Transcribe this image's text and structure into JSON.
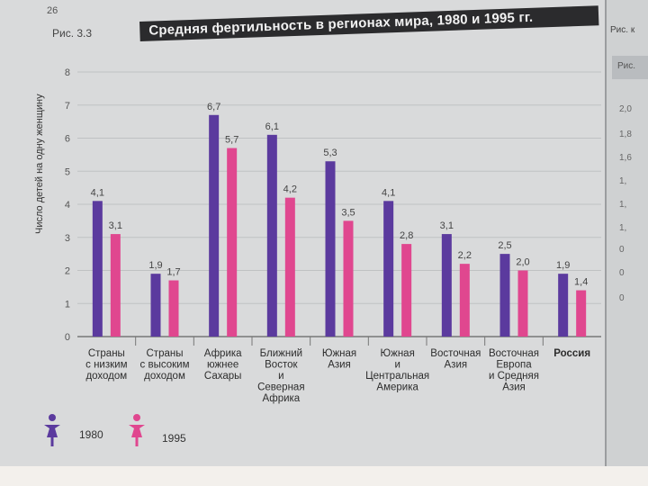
{
  "page": {
    "number": "26"
  },
  "figure": {
    "label": "Рис. 3.3",
    "title": "Средняя фертильность в регионах мира, 1980 и 1995 гг."
  },
  "right_page": {
    "figure_label": "Рис. к",
    "header": "Рис.",
    "tick_labels": [
      "2,0",
      "1,8",
      "1,6",
      "1,",
      "1,",
      "1,",
      "0",
      "0",
      "0"
    ]
  },
  "chart_data": {
    "type": "bar",
    "title": "Средняя фертильность в регионах мира, 1980 и 1995 гг.",
    "ylabel": "Число детей на одну женщину",
    "xlabel": "",
    "ylim": [
      0,
      8
    ],
    "yticks": [
      0,
      1,
      2,
      3,
      4,
      5,
      6,
      7,
      8
    ],
    "grid": true,
    "legend_position": "bottom-left",
    "categories": [
      [
        "Страны",
        "с низким",
        "доходом"
      ],
      [
        "Страны",
        "с высоким",
        "доходом"
      ],
      [
        "Африка",
        "южнее",
        "Сахары"
      ],
      [
        "Ближний",
        "Восток",
        "и",
        "Северная",
        "Африка"
      ],
      [
        "Южная",
        "Азия"
      ],
      [
        "Южная",
        "и",
        "Центральная",
        "Америка"
      ],
      [
        "Восточная",
        "Азия"
      ],
      [
        "Восточная",
        "Европа",
        "и Средняя",
        "Азия"
      ],
      [
        "Россия"
      ]
    ],
    "bold_categories": [
      8
    ],
    "series": [
      {
        "name": "1980",
        "color": "#5b3a9e",
        "values": [
          4.1,
          1.9,
          6.7,
          6.1,
          5.3,
          4.1,
          3.1,
          2.5,
          1.9
        ],
        "labels": [
          "4,1",
          "1,9",
          "6,7",
          "6,1",
          "5,3",
          "4,1",
          "3,1",
          "2,5",
          "1,9"
        ]
      },
      {
        "name": "1995",
        "color": "#e0478f",
        "values": [
          3.1,
          1.7,
          5.7,
          4.2,
          3.5,
          2.8,
          2.2,
          2.0,
          1.4
        ],
        "labels": [
          "3,1",
          "1,7",
          "5,7",
          "4,2",
          "3,5",
          "2,8",
          "2,2",
          "2,0",
          "1,4"
        ]
      }
    ]
  }
}
